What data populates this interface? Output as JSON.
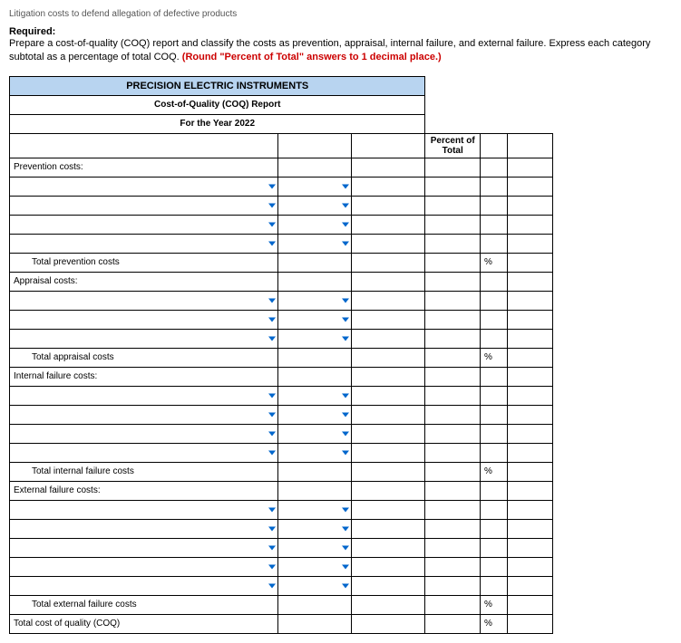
{
  "top_fragment": "Litigation costs to defend allegation of defective products",
  "required_label": "Required:",
  "instructions_pre": "Prepare a cost-of-quality (COQ) report and classify the costs as prevention, appraisal, internal failure, and external failure. Express each category subtotal as a percentage of total COQ. ",
  "instructions_red": "(Round \"Percent of Total\" answers to 1 decimal place.)",
  "header": {
    "company": "PRECISION ELECTRIC INSTRUMENTS",
    "report": "Cost-of-Quality (COQ) Report",
    "period": "For the Year 2022"
  },
  "percent_header": "Percent of Total",
  "sections": {
    "prevention": {
      "label": "Prevention costs:",
      "total_label": "Total prevention costs"
    },
    "appraisal": {
      "label": "Appraisal costs:",
      "total_label": "Total appraisal costs"
    },
    "internal": {
      "label": "Internal failure costs:",
      "total_label": "Total internal failure costs"
    },
    "external": {
      "label": "External failure costs:",
      "total_label": "Total external failure costs"
    },
    "grand_total": "Total cost of quality (COQ)"
  },
  "pct_sym": "%"
}
